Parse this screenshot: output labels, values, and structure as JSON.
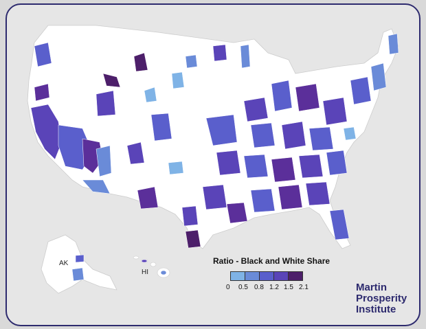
{
  "map": {
    "state_labels": {
      "alaska": "AK",
      "hawaii": "HI"
    },
    "legend": {
      "title": "Ratio - Black and White Share",
      "ticks": [
        "0",
        "0.5",
        "0.8",
        "1.2",
        "1.5",
        "2.1"
      ],
      "colors": [
        "#7fb3e6",
        "#6a8bd8",
        "#5a5fcc",
        "#5a44b8",
        "#5b2f9a",
        "#4d1f6a"
      ]
    },
    "brand": {
      "line1": "Martin",
      "line2": "Prosperity",
      "line3": "Institute"
    },
    "colors": {
      "land": "#ffffff",
      "frame": "#2d2a6e",
      "background": "#e6e6e6"
    }
  }
}
